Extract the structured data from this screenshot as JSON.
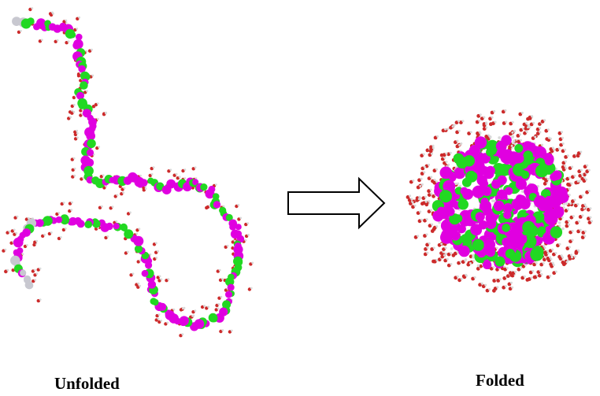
{
  "labels": {
    "unfolded": "Unfolded",
    "folded": "Folded"
  },
  "colors": {
    "hydrophilic": "#e000e0",
    "hydrophobic": "#22d822",
    "terminal": "#c8c8d0",
    "water_oxygen": "#cc2a2a",
    "water_hydrogen": "#d9d9d9",
    "arrow_stroke": "#000000",
    "arrow_fill": "#ffffff"
  },
  "icons": {
    "arrow": "right-arrow-icon"
  }
}
